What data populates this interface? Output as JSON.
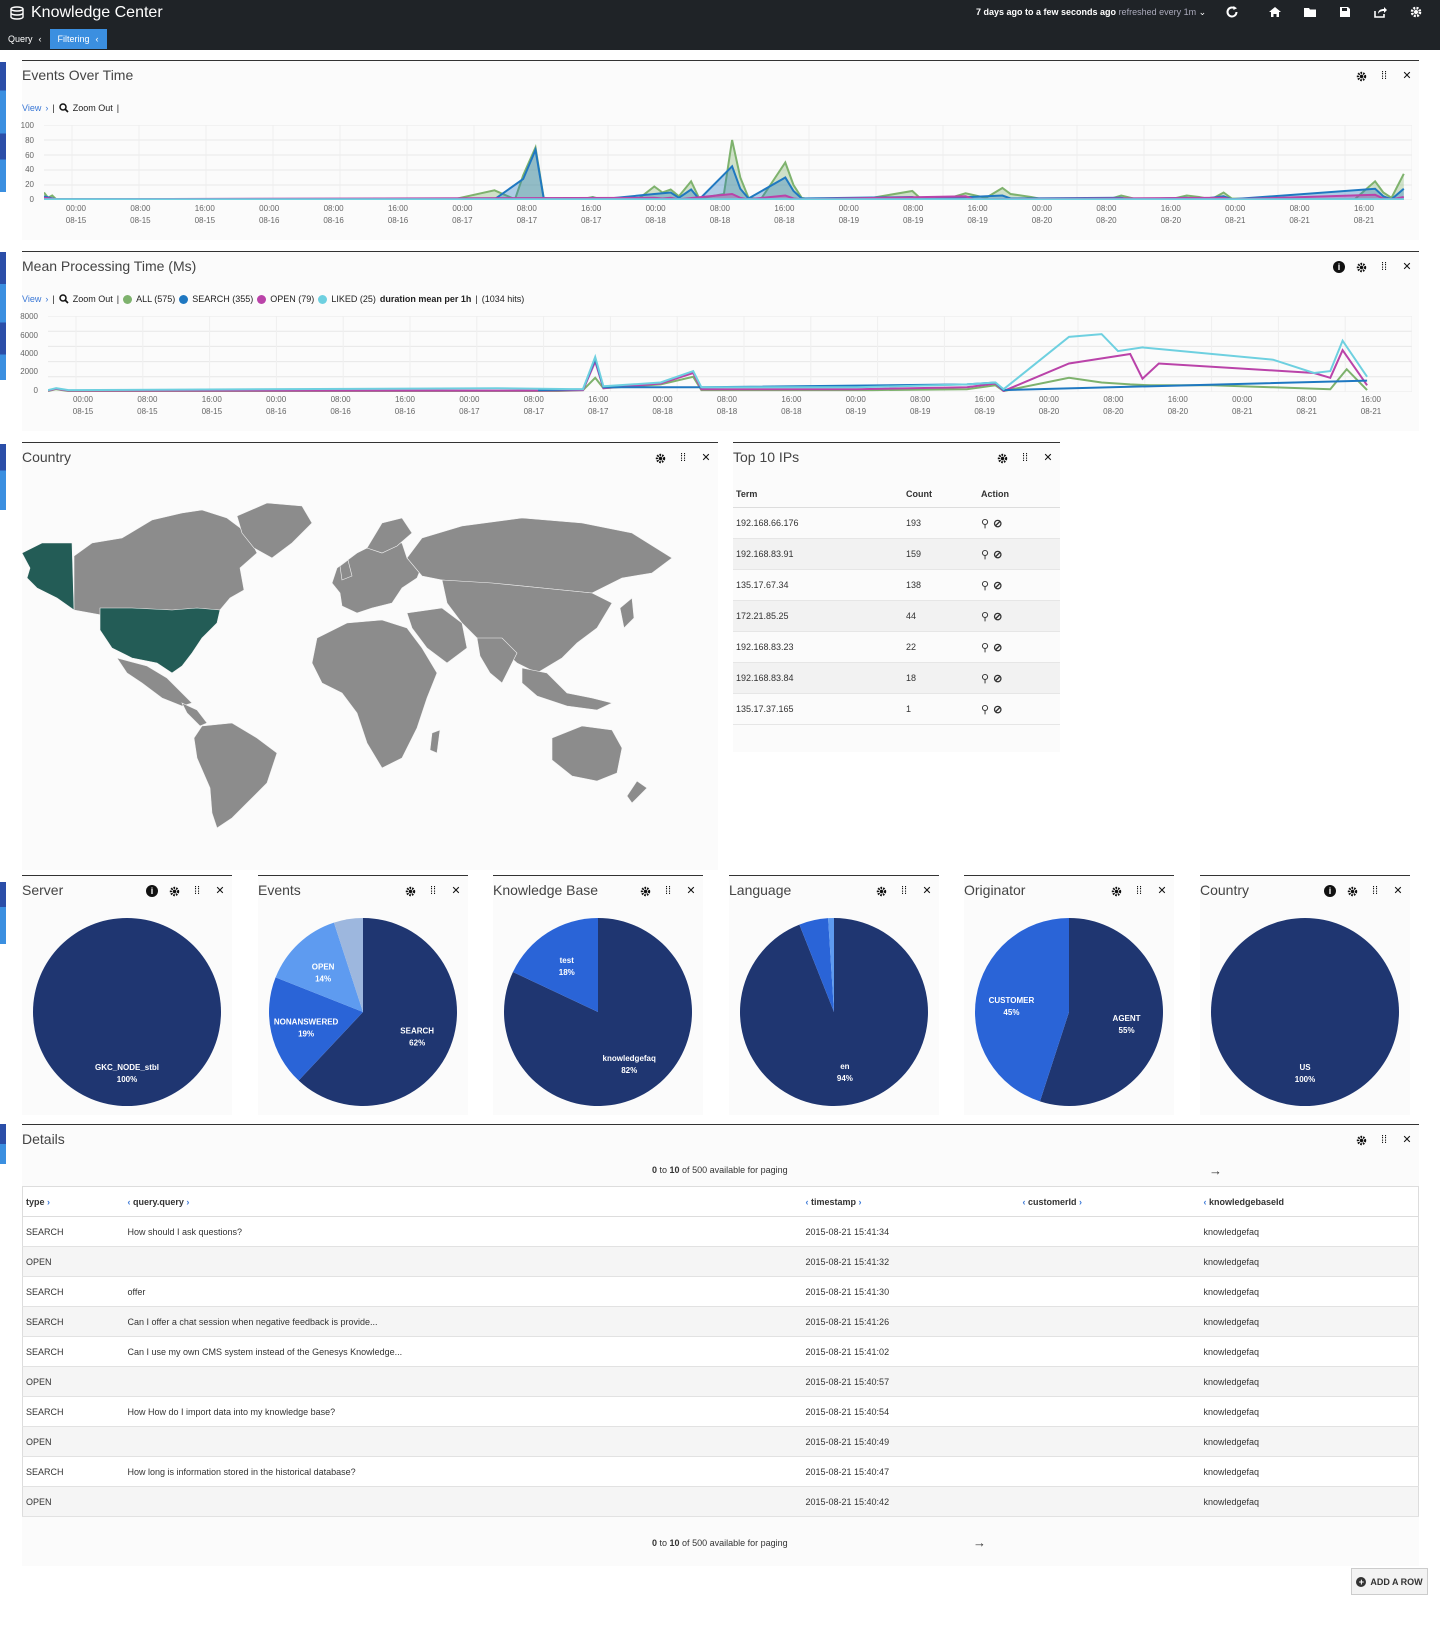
{
  "header": {
    "title": "Knowledge Center",
    "time_range_bold": "7 days ago to a few seconds ago",
    "time_range_refresh": "refreshed every 1m",
    "subtabs": [
      "Query",
      "Filtering"
    ]
  },
  "events_over_time": {
    "title": "Events Over Time",
    "view": "View",
    "zoom_out": "Zoom Out",
    "y_ticks": [
      "100",
      "80",
      "60",
      "40",
      "20",
      "0"
    ],
    "x_ticks": [
      [
        "00:00",
        "08-15"
      ],
      [
        "08:00",
        "08-15"
      ],
      [
        "16:00",
        "08-15"
      ],
      [
        "00:00",
        "08-16"
      ],
      [
        "08:00",
        "08-16"
      ],
      [
        "16:00",
        "08-16"
      ],
      [
        "00:00",
        "08-17"
      ],
      [
        "08:00",
        "08-17"
      ],
      [
        "16:00",
        "08-17"
      ],
      [
        "00:00",
        "08-18"
      ],
      [
        "08:00",
        "08-18"
      ],
      [
        "16:00",
        "08-18"
      ],
      [
        "00:00",
        "08-19"
      ],
      [
        "08:00",
        "08-19"
      ],
      [
        "16:00",
        "08-19"
      ],
      [
        "00:00",
        "08-20"
      ],
      [
        "08:00",
        "08-20"
      ],
      [
        "16:00",
        "08-20"
      ],
      [
        "00:00",
        "08-21"
      ],
      [
        "08:00",
        "08-21"
      ],
      [
        "16:00",
        "08-21"
      ]
    ],
    "series": [
      {
        "name": "ALL",
        "color": "#7eb26d",
        "points": [
          [
            0,
            10
          ],
          [
            1,
            3
          ],
          [
            2,
            6
          ],
          [
            3,
            1
          ],
          [
            5,
            1
          ],
          [
            100,
            1
          ],
          [
            110,
            13
          ],
          [
            115,
            1
          ],
          [
            117,
            33
          ],
          [
            120,
            70
          ],
          [
            122,
            3
          ],
          [
            125,
            1
          ],
          [
            131,
            1
          ],
          [
            134,
            4
          ],
          [
            136,
            1
          ],
          [
            145,
            1
          ],
          [
            149,
            18
          ],
          [
            151,
            10
          ],
          [
            153,
            14
          ],
          [
            155,
            5
          ],
          [
            158,
            25
          ],
          [
            160,
            2
          ],
          [
            166,
            8
          ],
          [
            168,
            80
          ],
          [
            170,
            30
          ],
          [
            172,
            3
          ],
          [
            175,
            1
          ],
          [
            181,
            50
          ],
          [
            183,
            20
          ],
          [
            185,
            3
          ],
          [
            187,
            1
          ],
          [
            200,
            1
          ],
          [
            212,
            12
          ],
          [
            214,
            2
          ],
          [
            220,
            1
          ],
          [
            225,
            9
          ],
          [
            230,
            3
          ],
          [
            234,
            16
          ],
          [
            236,
            8
          ],
          [
            241,
            4
          ],
          [
            244,
            1
          ],
          [
            260,
            1
          ],
          [
            263,
            6
          ],
          [
            266,
            2
          ],
          [
            275,
            1
          ],
          [
            279,
            6
          ],
          [
            282,
            4
          ],
          [
            285,
            1
          ],
          [
            288,
            10
          ],
          [
            290,
            2
          ],
          [
            300,
            1
          ],
          [
            310,
            1
          ],
          [
            317,
            1
          ],
          [
            320,
            1
          ],
          [
            325,
            25
          ],
          [
            327,
            10
          ],
          [
            329,
            3
          ],
          [
            332,
            35
          ]
        ]
      },
      {
        "name": "SEARCH",
        "color": "#1f78c1",
        "points": [
          [
            0,
            5
          ],
          [
            3,
            1
          ],
          [
            110,
            1
          ],
          [
            117,
            28
          ],
          [
            120,
            67
          ],
          [
            122,
            2
          ],
          [
            131,
            1
          ],
          [
            134,
            3
          ],
          [
            136,
            1
          ],
          [
            149,
            8
          ],
          [
            153,
            10
          ],
          [
            155,
            3
          ],
          [
            158,
            14
          ],
          [
            160,
            1
          ],
          [
            168,
            45
          ],
          [
            170,
            15
          ],
          [
            172,
            2
          ],
          [
            181,
            30
          ],
          [
            183,
            12
          ],
          [
            185,
            2
          ],
          [
            212,
            4
          ],
          [
            214,
            1
          ],
          [
            234,
            6
          ],
          [
            236,
            2
          ],
          [
            263,
            3
          ],
          [
            265,
            1
          ],
          [
            279,
            3
          ],
          [
            282,
            1
          ],
          [
            288,
            5
          ],
          [
            290,
            1
          ],
          [
            325,
            15
          ],
          [
            327,
            5
          ],
          [
            329,
            1
          ],
          [
            332,
            15
          ]
        ]
      },
      {
        "name": "OPEN",
        "color": "#ba43a9",
        "points": [
          [
            0,
            3
          ],
          [
            3,
            1
          ],
          [
            149,
            3
          ],
          [
            151,
            2
          ],
          [
            153,
            3
          ],
          [
            155,
            1
          ],
          [
            168,
            8
          ],
          [
            170,
            3
          ],
          [
            172,
            1
          ],
          [
            181,
            6
          ],
          [
            183,
            2
          ],
          [
            185,
            1
          ],
          [
            225,
            5
          ],
          [
            227,
            1
          ],
          [
            288,
            3
          ],
          [
            290,
            1
          ],
          [
            325,
            7
          ],
          [
            327,
            2
          ],
          [
            329,
            1
          ],
          [
            332,
            4
          ]
        ]
      },
      {
        "name": "LIKED",
        "color": "#6ed0e0",
        "points": [
          [
            0,
            1
          ],
          [
            332,
            1
          ]
        ]
      }
    ]
  },
  "mean_processing": {
    "title": "Mean Processing Time (Ms)",
    "view": "View",
    "zoom_out": "Zoom Out",
    "legend": [
      {
        "label": "ALL (575)",
        "color": "#7eb26d"
      },
      {
        "label": "SEARCH (355)",
        "color": "#1f78c1"
      },
      {
        "label": "OPEN (79)",
        "color": "#ba43a9"
      },
      {
        "label": "LIKED (25)",
        "color": "#6ed0e0"
      }
    ],
    "stat_bold": "duration mean per 1h",
    "stat_rest": "(1034 hits)",
    "y_ticks": [
      "8000",
      "6000",
      "4000",
      "2000",
      "0"
    ],
    "series": [
      {
        "name": "ALL",
        "color": "#7eb26d",
        "points": [
          [
            0,
            100
          ],
          [
            2,
            300
          ],
          [
            5,
            100
          ],
          [
            110,
            100
          ],
          [
            120,
            100
          ],
          [
            125,
            100
          ],
          [
            131,
            200
          ],
          [
            134,
            1500
          ],
          [
            136,
            400
          ],
          [
            150,
            800
          ],
          [
            158,
            1600
          ],
          [
            160,
            200
          ],
          [
            170,
            200
          ],
          [
            185,
            200
          ],
          [
            198,
            200
          ],
          [
            202,
            200
          ],
          [
            225,
            300
          ],
          [
            232,
            700
          ],
          [
            234,
            100
          ],
          [
            250,
            1500
          ],
          [
            258,
            1000
          ],
          [
            265,
            800
          ],
          [
            270,
            700
          ],
          [
            285,
            700
          ],
          [
            300,
            500
          ],
          [
            314,
            300
          ],
          [
            318,
            2400
          ],
          [
            323,
            200
          ]
        ]
      },
      {
        "name": "OPEN",
        "color": "#ba43a9",
        "points": [
          [
            0,
            150
          ],
          [
            2,
            350
          ],
          [
            5,
            150
          ],
          [
            120,
            150
          ],
          [
            131,
            200
          ],
          [
            134,
            3200
          ],
          [
            136,
            400
          ],
          [
            150,
            900
          ],
          [
            158,
            2000
          ],
          [
            160,
            300
          ],
          [
            185,
            300
          ],
          [
            198,
            300
          ],
          [
            225,
            500
          ],
          [
            232,
            900
          ],
          [
            234,
            100
          ],
          [
            250,
            3000
          ],
          [
            265,
            4000
          ],
          [
            268,
            1400
          ],
          [
            272,
            3000
          ],
          [
            310,
            2000
          ],
          [
            314,
            1500
          ],
          [
            317,
            4400
          ],
          [
            323,
            700
          ]
        ]
      },
      {
        "name": "SEARCH",
        "color": "#1f78c1",
        "points": [
          [
            120,
            200
          ],
          [
            131,
            300
          ],
          [
            134,
            3500
          ],
          [
            136,
            500
          ],
          [
            160,
            500
          ],
          [
            225,
            800
          ],
          [
            232,
            1000
          ],
          [
            234,
            200
          ],
          [
            323,
            1200
          ]
        ]
      },
      {
        "name": "LIKED",
        "color": "#6ed0e0",
        "points": [
          [
            0,
            200
          ],
          [
            2,
            400
          ],
          [
            5,
            200
          ],
          [
            110,
            400
          ],
          [
            131,
            300
          ],
          [
            134,
            3700
          ],
          [
            136,
            600
          ],
          [
            150,
            1000
          ],
          [
            158,
            2200
          ],
          [
            160,
            500
          ],
          [
            185,
            500
          ],
          [
            198,
            500
          ],
          [
            225,
            800
          ],
          [
            232,
            1000
          ],
          [
            234,
            300
          ],
          [
            250,
            5800
          ],
          [
            258,
            6100
          ],
          [
            262,
            4300
          ],
          [
            268,
            4700
          ],
          [
            300,
            3400
          ],
          [
            310,
            2000
          ],
          [
            314,
            2200
          ],
          [
            317,
            5400
          ],
          [
            323,
            1600
          ]
        ]
      }
    ]
  },
  "country_map": {
    "title": "Country",
    "highlight_color": "#235c56",
    "land_color": "#8c8c8c"
  },
  "top_ips": {
    "title": "Top 10 IPs",
    "columns": [
      "Term",
      "Count",
      "Action"
    ],
    "rows": [
      {
        "term": "192.168.66.176",
        "count": "193"
      },
      {
        "term": "192.168.83.91",
        "count": "159"
      },
      {
        "term": "135.17.67.34",
        "count": "138"
      },
      {
        "term": "172.21.85.25",
        "count": "44"
      },
      {
        "term": "192.168.83.23",
        "count": "22"
      },
      {
        "term": "192.168.83.84",
        "count": "18"
      },
      {
        "term": "135.17.37.165",
        "count": "1"
      }
    ]
  },
  "pies": [
    {
      "title": "Server",
      "info": true,
      "slices": [
        {
          "label": "GKC_NODE_stbl",
          "pct": "100%",
          "value": 100,
          "color": "#1f3671"
        }
      ]
    },
    {
      "title": "Events",
      "info": false,
      "slices": [
        {
          "label": "SEARCH",
          "pct": "62%",
          "value": 62,
          "color": "#1f3671"
        },
        {
          "label": "NONANSWERED",
          "pct": "19%",
          "value": 19,
          "color": "#2a64d7"
        },
        {
          "label": "OPEN",
          "pct": "14%",
          "value": 14,
          "color": "#5e9bf0"
        },
        {
          "label": "",
          "pct": "",
          "value": 5,
          "color": "#9db7de"
        }
      ]
    },
    {
      "title": "Knowledge Base",
      "info": false,
      "slices": [
        {
          "label": "knowledgefaq",
          "pct": "82%",
          "value": 82,
          "color": "#1f3671"
        },
        {
          "label": "test",
          "pct": "18%",
          "value": 18,
          "color": "#2a64d7"
        }
      ]
    },
    {
      "title": "Language",
      "info": false,
      "slices": [
        {
          "label": "en",
          "pct": "94%",
          "value": 94,
          "color": "#1f3671"
        },
        {
          "label": "",
          "pct": "",
          "value": 5,
          "color": "#2a64d7"
        },
        {
          "label": "",
          "pct": "",
          "value": 1,
          "color": "#5e9bf0"
        }
      ]
    },
    {
      "title": "Originator",
      "info": false,
      "slices": [
        {
          "label": "AGENT",
          "pct": "55%",
          "value": 55,
          "color": "#1f3671"
        },
        {
          "label": "CUSTOMER",
          "pct": "45%",
          "value": 45,
          "color": "#2a64d7"
        }
      ]
    },
    {
      "title": "Country",
      "info": true,
      "slices": [
        {
          "label": "US",
          "pct": "100%",
          "value": 100,
          "color": "#1f3671"
        }
      ]
    }
  ],
  "details": {
    "title": "Details",
    "paging_start": "0",
    "paging_end": "10",
    "paging_total": "500",
    "paging_text": "available for paging",
    "columns": [
      "type",
      "query.query",
      "timestamp",
      "customerId",
      "knowledgebaseId"
    ],
    "rows": [
      [
        "SEARCH",
        "How should I ask questions?",
        "2015-08-21 15:41:34",
        "",
        "knowledgefaq"
      ],
      [
        "OPEN",
        "",
        "2015-08-21 15:41:32",
        "",
        "knowledgefaq"
      ],
      [
        "SEARCH",
        "offer",
        "2015-08-21 15:41:30",
        "",
        "knowledgefaq"
      ],
      [
        "SEARCH",
        "Can I offer a chat session when negative feedback is provide...",
        "2015-08-21 15:41:26",
        "",
        "knowledgefaq"
      ],
      [
        "SEARCH",
        "Can I use my own CMS system instead of the Genesys Knowledge...",
        "2015-08-21 15:41:02",
        "",
        "knowledgefaq"
      ],
      [
        "OPEN",
        "",
        "2015-08-21 15:40:57",
        "",
        "knowledgefaq"
      ],
      [
        "SEARCH",
        "How How do I import data into my knowledge base?",
        "2015-08-21 15:40:54",
        "",
        "knowledgefaq"
      ],
      [
        "OPEN",
        "",
        "2015-08-21 15:40:49",
        "",
        "knowledgefaq"
      ],
      [
        "SEARCH",
        "How long is information stored in the historical database?",
        "2015-08-21 15:40:47",
        "",
        "knowledgefaq"
      ],
      [
        "OPEN",
        "",
        "2015-08-21 15:40:42",
        "",
        "knowledgefaq"
      ]
    ]
  },
  "add_row_label": "ADD A ROW"
}
